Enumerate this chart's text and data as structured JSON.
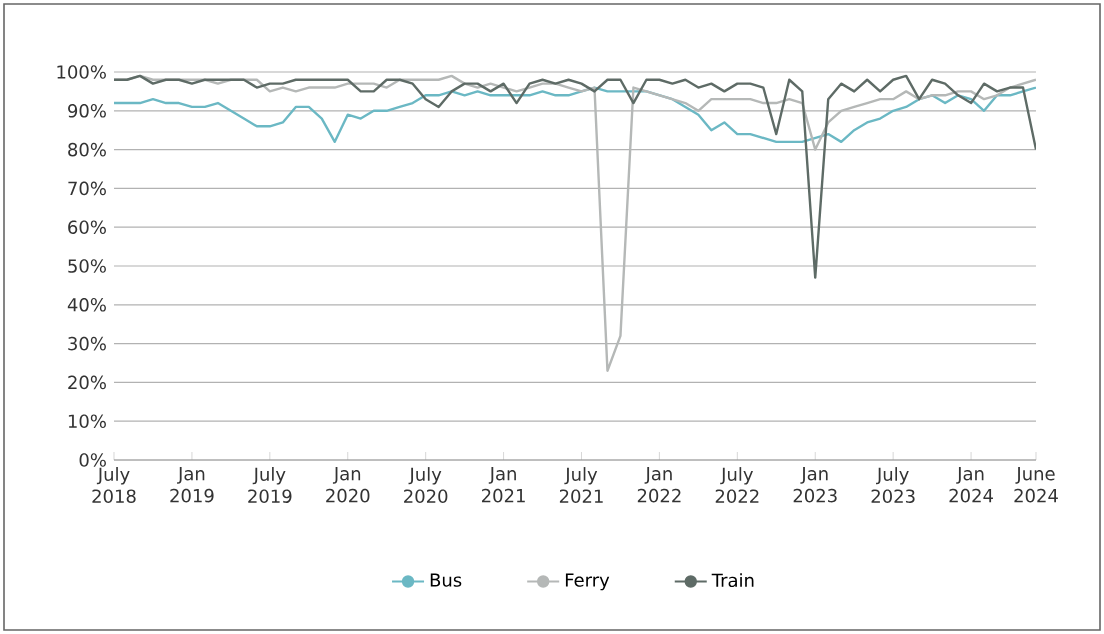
{
  "chart_data": {
    "type": "line",
    "x": [
      "2018-07",
      "2018-08",
      "2018-09",
      "2018-10",
      "2018-11",
      "2018-12",
      "2019-01",
      "2019-02",
      "2019-03",
      "2019-04",
      "2019-05",
      "2019-06",
      "2019-07",
      "2019-08",
      "2019-09",
      "2019-10",
      "2019-11",
      "2019-12",
      "2020-01",
      "2020-02",
      "2020-03",
      "2020-04",
      "2020-05",
      "2020-06",
      "2020-07",
      "2020-08",
      "2020-09",
      "2020-10",
      "2020-11",
      "2020-12",
      "2021-01",
      "2021-02",
      "2021-03",
      "2021-04",
      "2021-05",
      "2021-06",
      "2021-07",
      "2021-08",
      "2021-09",
      "2021-10",
      "2021-11",
      "2021-12",
      "2022-01",
      "2022-02",
      "2022-03",
      "2022-04",
      "2022-05",
      "2022-06",
      "2022-07",
      "2022-08",
      "2022-09",
      "2022-10",
      "2022-11",
      "2022-12",
      "2023-01",
      "2023-02",
      "2023-03",
      "2023-04",
      "2023-05",
      "2023-06",
      "2023-07",
      "2023-08",
      "2023-09",
      "2023-10",
      "2023-11",
      "2023-12",
      "2024-01",
      "2024-02",
      "2024-03",
      "2024-04",
      "2024-05",
      "2024-06"
    ],
    "series": [
      {
        "name": "Bus",
        "color": "#6bb8c4",
        "values": [
          92,
          92,
          92,
          93,
          92,
          92,
          91,
          91,
          92,
          90,
          88,
          86,
          86,
          87,
          91,
          91,
          88,
          82,
          89,
          88,
          90,
          90,
          91,
          92,
          94,
          94,
          95,
          94,
          95,
          94,
          94,
          94,
          94,
          95,
          94,
          94,
          95,
          96,
          95,
          95,
          95,
          95,
          94,
          93,
          91,
          89,
          85,
          87,
          84,
          84,
          83,
          82,
          82,
          82,
          83,
          84,
          82,
          85,
          87,
          88,
          90,
          91,
          93,
          94,
          92,
          94,
          93,
          90,
          94,
          94,
          95,
          96
        ]
      },
      {
        "name": "Ferry",
        "color": "#b5b8b7",
        "values": [
          98,
          98,
          99,
          98,
          98,
          98,
          98,
          98,
          97,
          98,
          98,
          98,
          95,
          96,
          95,
          96,
          96,
          96,
          97,
          97,
          97,
          96,
          98,
          98,
          98,
          98,
          99,
          97,
          96,
          97,
          96,
          95,
          96,
          97,
          97,
          96,
          95,
          96,
          23,
          32,
          96,
          95,
          94,
          93,
          92,
          90,
          93,
          93,
          93,
          93,
          92,
          92,
          93,
          92,
          80,
          87,
          90,
          91,
          92,
          93,
          93,
          95,
          93,
          94,
          94,
          95,
          95,
          93,
          94,
          96,
          97,
          98
        ]
      },
      {
        "name": "Train",
        "color": "#5e6b66",
        "values": [
          98,
          98,
          99,
          97,
          98,
          98,
          97,
          98,
          98,
          98,
          98,
          96,
          97,
          97,
          98,
          98,
          98,
          98,
          98,
          95,
          95,
          98,
          98,
          97,
          93,
          91,
          95,
          97,
          97,
          95,
          97,
          92,
          97,
          98,
          97,
          98,
          97,
          95,
          98,
          98,
          92,
          98,
          98,
          97,
          98,
          96,
          97,
          95,
          97,
          97,
          96,
          84,
          98,
          95,
          47,
          93,
          97,
          95,
          98,
          95,
          98,
          99,
          93,
          98,
          97,
          94,
          92,
          97,
          95,
          96,
          96,
          80
        ]
      }
    ],
    "xlim": [
      "2018-07",
      "2024-06"
    ],
    "xticks": [
      {
        "value": "2018-07",
        "label": "July 2018"
      },
      {
        "value": "2019-01",
        "label": "Jan 2019"
      },
      {
        "value": "2019-07",
        "label": "July 2019"
      },
      {
        "value": "2020-01",
        "label": "Jan 2020"
      },
      {
        "value": "2020-07",
        "label": "July 2020"
      },
      {
        "value": "2021-01",
        "label": "Jan 2021"
      },
      {
        "value": "2021-07",
        "label": "July 2021"
      },
      {
        "value": "2022-01",
        "label": "Jan 2022"
      },
      {
        "value": "2022-07",
        "label": "July 2022"
      },
      {
        "value": "2023-01",
        "label": "Jan 2023"
      },
      {
        "value": "2023-07",
        "label": "July 2023"
      },
      {
        "value": "2024-01",
        "label": "Jan 2024"
      },
      {
        "value": "2024-06",
        "label": "June 2024"
      }
    ],
    "ylim": [
      0,
      100
    ],
    "yticks": [
      {
        "value": 0,
        "label": "0%"
      },
      {
        "value": 10,
        "label": "10%"
      },
      {
        "value": 20,
        "label": "20%"
      },
      {
        "value": 30,
        "label": "30%"
      },
      {
        "value": 40,
        "label": "40%"
      },
      {
        "value": 50,
        "label": "50%"
      },
      {
        "value": 60,
        "label": "60%"
      },
      {
        "value": 70,
        "label": "70%"
      },
      {
        "value": 80,
        "label": "80%"
      },
      {
        "value": 90,
        "label": "90%"
      },
      {
        "value": 100,
        "label": "100%"
      }
    ],
    "grid": "y",
    "legend": "bottom",
    "line_style": "solid",
    "marker": "none"
  }
}
